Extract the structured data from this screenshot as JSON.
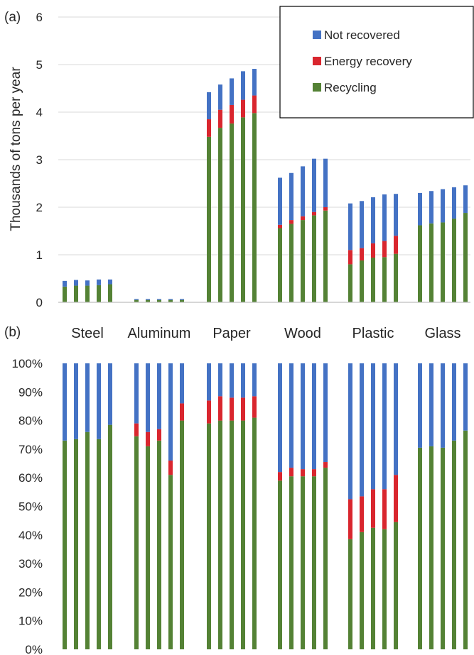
{
  "colors": {
    "not_recovered": "#4472c4",
    "energy_recovery": "#d9262e",
    "recycling": "#548235",
    "gridline": "#d9d9d9",
    "axis": "#bfbfbf",
    "text": "#262626"
  },
  "chart_data": [
    {
      "panel_label": "(a)",
      "type": "bar",
      "stacked": true,
      "ylabel": "Thousands of tons per year",
      "ylim": [
        0,
        6
      ],
      "y_ticks": [
        "0",
        "1",
        "2",
        "3",
        "4",
        "5",
        "6"
      ],
      "grid": true,
      "legend_position": "top-right",
      "categories": [
        "Steel",
        "Aluminum",
        "Paper",
        "Wood",
        "Plastic",
        "Glass"
      ],
      "bars_per_category": 5,
      "series": [
        {
          "name": "Recycling",
          "values": [
            [
              0.33,
              0.35,
              0.35,
              0.36,
              0.38
            ],
            [
              0.05,
              0.05,
              0.05,
              0.05,
              0.05
            ],
            [
              3.48,
              3.67,
              3.76,
              3.89,
              3.98
            ],
            [
              1.56,
              1.65,
              1.73,
              1.83,
              1.93
            ],
            [
              0.8,
              0.88,
              0.94,
              0.95,
              1.02
            ],
            [
              1.62,
              1.66,
              1.68,
              1.76,
              1.88
            ]
          ]
        },
        {
          "name": "Energy recovery",
          "values": [
            [
              0.0,
              0.0,
              0.0,
              0.0,
              0.0
            ],
            [
              0.0,
              0.0,
              0.0,
              0.0,
              0.0
            ],
            [
              0.37,
              0.38,
              0.39,
              0.37,
              0.37
            ],
            [
              0.07,
              0.08,
              0.08,
              0.07,
              0.07
            ],
            [
              0.3,
              0.26,
              0.3,
              0.34,
              0.38
            ],
            [
              0.0,
              0.0,
              0.0,
              0.0,
              0.0
            ]
          ]
        },
        {
          "name": "Not recovered",
          "values": [
            [
              0.12,
              0.12,
              0.11,
              0.12,
              0.1
            ],
            [
              0.02,
              0.02,
              0.02,
              0.02,
              0.02
            ],
            [
              0.57,
              0.53,
              0.56,
              0.6,
              0.56
            ],
            [
              0.99,
              0.99,
              1.05,
              1.12,
              1.02
            ],
            [
              0.98,
              0.99,
              0.97,
              0.98,
              0.88
            ],
            [
              0.68,
              0.68,
              0.7,
              0.66,
              0.58
            ]
          ]
        }
      ]
    },
    {
      "panel_label": "(b)",
      "type": "bar",
      "stacked": true,
      "ylim": [
        0,
        100
      ],
      "y_ticks": [
        "0%",
        "10%",
        "20%",
        "30%",
        "40%",
        "50%",
        "60%",
        "70%",
        "80%",
        "90%",
        "100%"
      ],
      "grid": false,
      "categories": [
        "Steel",
        "Aluminum",
        "Paper",
        "Wood",
        "Plastic",
        "Glass"
      ],
      "bars_per_category": 5,
      "series": [
        {
          "name": "Recycling",
          "values": [
            [
              73,
              73.5,
              76,
              73.5,
              78.5
            ],
            [
              74.5,
              71,
              73,
              61,
              80
            ],
            [
              79,
              80,
              80,
              80,
              81
            ],
            [
              59,
              60.5,
              60.5,
              60.5,
              63.5
            ],
            [
              38.5,
              41,
              42.5,
              42,
              44.5
            ],
            [
              70.5,
              71,
              70.5,
              73,
              76.5
            ]
          ]
        },
        {
          "name": "Energy recovery",
          "values": [
            [
              0,
              0,
              0,
              0,
              0
            ],
            [
              4.5,
              5,
              4,
              5,
              6
            ],
            [
              8,
              8.5,
              8,
              8,
              7.5
            ],
            [
              3,
              3,
              2.5,
              2.5,
              2
            ],
            [
              14,
              12.5,
              13.5,
              14,
              16.5
            ],
            [
              0,
              0,
              0,
              0,
              0
            ]
          ]
        },
        {
          "name": "Not recovered",
          "values": [
            [
              27,
              26.5,
              24,
              26.5,
              21.5
            ],
            [
              21,
              24,
              23,
              34,
              14
            ],
            [
              13,
              11.5,
              12,
              12,
              11.5
            ],
            [
              38,
              36.5,
              37,
              37,
              34.5
            ],
            [
              47.5,
              46.5,
              44,
              44,
              39
            ],
            [
              29.5,
              29,
              29.5,
              27,
              23.5
            ]
          ]
        }
      ]
    }
  ]
}
